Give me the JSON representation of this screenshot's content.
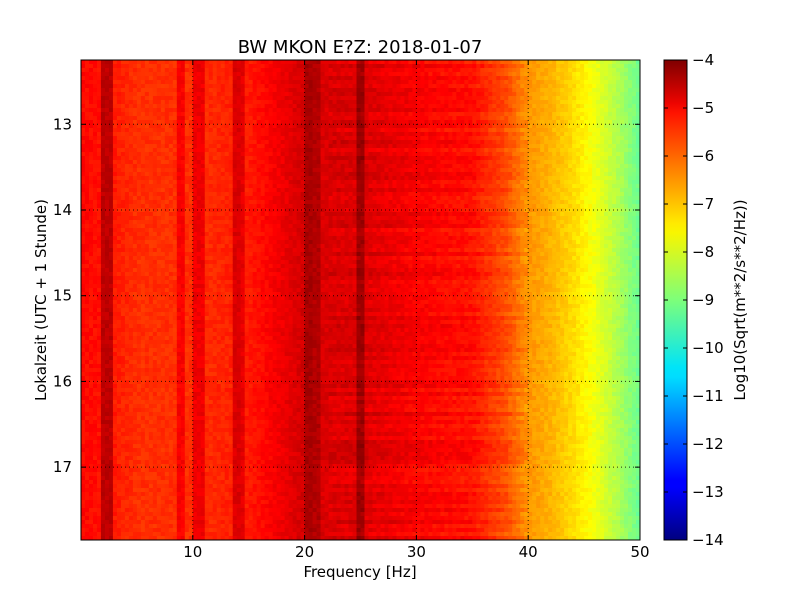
{
  "chart_data": {
    "type": "heatmap",
    "title": "BW MKON E?Z: 2018-01-07",
    "xlabel": "Frequency [Hz]",
    "ylabel": "Lokalzeit (UTC + 1 Stunde)",
    "colorbar_label": "Log10(Sqrt(m**2/s**2/Hz))",
    "xlim": [
      0,
      50
    ],
    "ylim": [
      12.25,
      17.85
    ],
    "y_inverted": true,
    "x_ticks": [
      10,
      20,
      30,
      40,
      50
    ],
    "x_tick_labels": [
      "10",
      "20",
      "30",
      "40",
      "50"
    ],
    "y_ticks": [
      13,
      14,
      15,
      16,
      17
    ],
    "y_tick_labels": [
      "13",
      "14",
      "15",
      "16",
      "17"
    ],
    "colorbar_range": [
      -14,
      -4
    ],
    "colorbar_ticks": [
      -4,
      -5,
      -6,
      -7,
      -8,
      -9,
      -10,
      -11,
      -12,
      -13,
      -14
    ],
    "colorbar_tick_labels": [
      "−4",
      "−5",
      "−6",
      "−7",
      "−8",
      "−9",
      "−10",
      "−11",
      "−12",
      "−13",
      "−14"
    ],
    "colormap": "jet",
    "grid": true,
    "frequency_profile": {
      "frequency_hz": [
        0,
        2,
        5,
        10,
        15,
        20,
        22,
        25,
        30,
        35,
        38,
        40,
        42,
        44,
        46,
        48,
        50
      ],
      "log10_amplitude": [
        -5.3,
        -5.4,
        -5.7,
        -5.7,
        -5.5,
        -4.8,
        -4.9,
        -4.9,
        -5.2,
        -5.4,
        -6.0,
        -6.7,
        -7.0,
        -7.4,
        -7.9,
        -8.5,
        -9.2
      ]
    },
    "spectral_lines": [
      {
        "frequency_hz": 2.4,
        "log10_amplitude": -4.6
      },
      {
        "frequency_hz": 9.0,
        "log10_amplitude": -5.2
      },
      {
        "frequency_hz": 10.5,
        "log10_amplitude": -5.1
      },
      {
        "frequency_hz": 13.9,
        "log10_amplitude": -4.9
      },
      {
        "frequency_hz": 14.2,
        "log10_amplitude": -5.0
      },
      {
        "frequency_hz": 20.3,
        "log10_amplitude": -4.4
      },
      {
        "frequency_hz": 21.0,
        "log10_amplitude": -4.5
      },
      {
        "frequency_hz": 25.0,
        "log10_amplitude": -4.3
      }
    ]
  }
}
